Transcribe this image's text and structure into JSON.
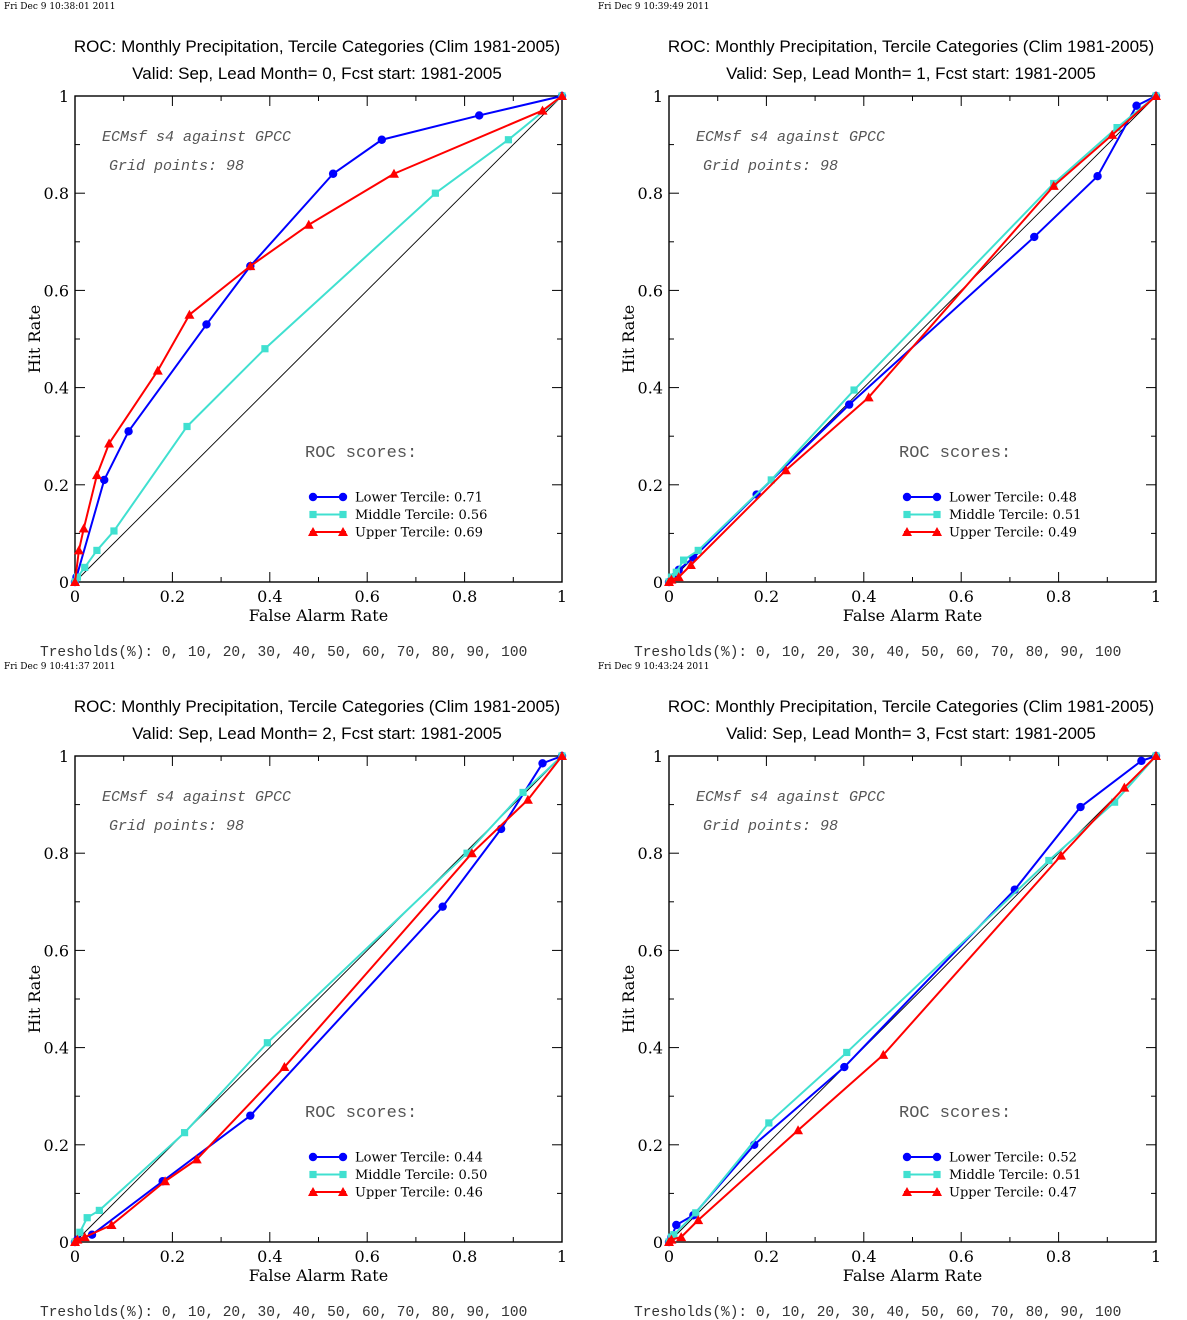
{
  "chart_data": [
    {
      "type": "line",
      "timestamp": "Fri Dec  9 10:38:01 2011",
      "title": "ROC: Monthly Precipitation, Tercile Categories (Clim 1981-2005)",
      "subtitle": "Valid: Sep, Lead Month= 0, Fcst start: 1981-2005",
      "xlabel": "False Alarm Rate",
      "ylabel": "Hit Rate",
      "xlim": [
        0,
        1
      ],
      "ylim": [
        0,
        1
      ],
      "xticks": [
        "0",
        "0.2",
        "0.4",
        "0.6",
        "0.8",
        "1"
      ],
      "yticks": [
        "0",
        "0.2",
        "0.4",
        "0.6",
        "0.8",
        "1"
      ],
      "annotation_lines": [
        "ECMsf s4 against GPCC",
        "Grid points:   98"
      ],
      "scores_heading": "ROC scores:",
      "legend_position": "bottom-right",
      "thresholds_text": "Tresholds(%): 0, 10, 20, 30, 40, 50, 60, 70, 80, 90, 100",
      "series": [
        {
          "name": "Lower Tercile: 0.71",
          "color": "#0000ff",
          "marker": "circle",
          "x": [
            0,
            0.003,
            0.06,
            0.11,
            0.27,
            0.36,
            0.53,
            0.63,
            0.83,
            1.0
          ],
          "y": [
            0,
            0.01,
            0.21,
            0.31,
            0.53,
            0.65,
            0.84,
            0.91,
            0.96,
            1.0
          ]
        },
        {
          "name": "Middle Tercile: 0.56",
          "color": "#40e0d0",
          "marker": "square",
          "x": [
            0,
            0.005,
            0.02,
            0.045,
            0.08,
            0.23,
            0.39,
            0.74,
            0.89,
            1.0
          ],
          "y": [
            0,
            0.01,
            0.03,
            0.065,
            0.105,
            0.32,
            0.48,
            0.8,
            0.91,
            1.0
          ]
        },
        {
          "name": "Upper Tercile: 0.69",
          "color": "#ff0000",
          "marker": "triangle",
          "x": [
            0,
            0.008,
            0.018,
            0.045,
            0.07,
            0.17,
            0.235,
            0.36,
            0.48,
            0.655,
            0.96,
            1.0
          ],
          "y": [
            0,
            0.065,
            0.11,
            0.22,
            0.285,
            0.435,
            0.55,
            0.65,
            0.735,
            0.84,
            0.97,
            1.0
          ]
        }
      ]
    },
    {
      "type": "line",
      "timestamp": "Fri Dec  9 10:39:49 2011",
      "title": "ROC: Monthly Precipitation, Tercile Categories (Clim 1981-2005)",
      "subtitle": "Valid: Sep, Lead Month= 1, Fcst start: 1981-2005",
      "xlabel": "False Alarm Rate",
      "ylabel": "Hit Rate",
      "xlim": [
        0,
        1
      ],
      "ylim": [
        0,
        1
      ],
      "xticks": [
        "0",
        "0.2",
        "0.4",
        "0.6",
        "0.8",
        "1"
      ],
      "yticks": [
        "0",
        "0.2",
        "0.4",
        "0.6",
        "0.8",
        "1"
      ],
      "annotation_lines": [
        "ECMsf s4 against GPCC",
        "Grid points:   98"
      ],
      "scores_heading": "ROC scores:",
      "legend_position": "bottom-right",
      "thresholds_text": "Tresholds(%): 0, 10, 20, 30, 40, 50, 60, 70, 80, 90, 100",
      "series": [
        {
          "name": "Lower Tercile: 0.48",
          "color": "#0000ff",
          "marker": "circle",
          "x": [
            0,
            0.01,
            0.02,
            0.05,
            0.18,
            0.37,
            0.75,
            0.88,
            0.96,
            1.0
          ],
          "y": [
            0,
            0.01,
            0.025,
            0.05,
            0.18,
            0.365,
            0.71,
            0.835,
            0.98,
            1.0
          ]
        },
        {
          "name": "Middle Tercile: 0.51",
          "color": "#40e0d0",
          "marker": "square",
          "x": [
            0,
            0.005,
            0.015,
            0.03,
            0.06,
            0.21,
            0.38,
            0.79,
            0.92,
            1.0
          ],
          "y": [
            0,
            0.01,
            0.02,
            0.045,
            0.065,
            0.21,
            0.395,
            0.82,
            0.935,
            1.0
          ]
        },
        {
          "name": "Upper Tercile: 0.49",
          "color": "#ff0000",
          "marker": "triangle",
          "x": [
            0,
            0.005,
            0.02,
            0.045,
            0.24,
            0.41,
            0.79,
            0.91,
            1.0
          ],
          "y": [
            0,
            0.005,
            0.01,
            0.035,
            0.23,
            0.38,
            0.815,
            0.92,
            1.0
          ]
        }
      ]
    },
    {
      "type": "line",
      "timestamp": "Fri Dec  9 10:41:37 2011",
      "title": "ROC: Monthly Precipitation, Tercile Categories (Clim 1981-2005)",
      "subtitle": "Valid: Sep, Lead Month= 2, Fcst start: 1981-2005",
      "xlabel": "False Alarm Rate",
      "ylabel": "Hit Rate",
      "xlim": [
        0,
        1
      ],
      "ylim": [
        0,
        1
      ],
      "xticks": [
        "0",
        "0.2",
        "0.4",
        "0.6",
        "0.8",
        "1"
      ],
      "yticks": [
        "0",
        "0.2",
        "0.4",
        "0.6",
        "0.8",
        "1"
      ],
      "annotation_lines": [
        "ECMsf s4 against GPCC",
        "Grid points:   98"
      ],
      "scores_heading": "ROC scores:",
      "legend_position": "bottom-right",
      "thresholds_text": "Tresholds(%): 0, 10, 20, 30, 40, 50, 60, 70, 80, 90, 100",
      "series": [
        {
          "name": "Lower Tercile: 0.44",
          "color": "#0000ff",
          "marker": "circle",
          "x": [
            0,
            0.005,
            0.035,
            0.18,
            0.36,
            0.755,
            0.875,
            0.96,
            1.0
          ],
          "y": [
            0,
            0.005,
            0.015,
            0.125,
            0.26,
            0.69,
            0.85,
            0.985,
            1.0
          ]
        },
        {
          "name": "Middle Tercile: 0.50",
          "color": "#40e0d0",
          "marker": "square",
          "x": [
            0,
            0.01,
            0.025,
            0.05,
            0.225,
            0.395,
            0.805,
            0.92,
            1.0
          ],
          "y": [
            0,
            0.02,
            0.05,
            0.065,
            0.225,
            0.41,
            0.8,
            0.925,
            1.0
          ]
        },
        {
          "name": "Upper Tercile: 0.46",
          "color": "#ff0000",
          "marker": "triangle",
          "x": [
            0,
            0.005,
            0.02,
            0.075,
            0.185,
            0.25,
            0.43,
            0.815,
            0.93,
            1.0
          ],
          "y": [
            0,
            0.005,
            0.01,
            0.035,
            0.125,
            0.17,
            0.36,
            0.8,
            0.91,
            1.0
          ]
        }
      ]
    },
    {
      "type": "line",
      "timestamp": "Fri Dec  9 10:43:24 2011",
      "title": "ROC: Monthly Precipitation, Tercile Categories (Clim 1981-2005)",
      "subtitle": "Valid: Sep, Lead Month= 3, Fcst start: 1981-2005",
      "xlabel": "False Alarm Rate",
      "ylabel": "Hit Rate",
      "xlim": [
        0,
        1
      ],
      "ylim": [
        0,
        1
      ],
      "xticks": [
        "0",
        "0.2",
        "0.4",
        "0.6",
        "0.8",
        "1"
      ],
      "yticks": [
        "0",
        "0.2",
        "0.4",
        "0.6",
        "0.8",
        "1"
      ],
      "annotation_lines": [
        "ECMsf s4 against GPCC",
        "Grid points:   98"
      ],
      "scores_heading": "ROC scores:",
      "legend_position": "bottom-right",
      "thresholds_text": "Tresholds(%): 0, 10, 20, 30, 40, 50, 60, 70, 80, 90, 100",
      "series": [
        {
          "name": "Lower Tercile: 0.52",
          "color": "#0000ff",
          "marker": "circle",
          "x": [
            0,
            0.005,
            0.015,
            0.05,
            0.175,
            0.36,
            0.71,
            0.845,
            0.97,
            1.0
          ],
          "y": [
            0,
            0.01,
            0.035,
            0.055,
            0.2,
            0.36,
            0.725,
            0.895,
            0.99,
            1.0
          ]
        },
        {
          "name": "Middle Tercile: 0.51",
          "color": "#40e0d0",
          "marker": "square",
          "x": [
            0,
            0.005,
            0.01,
            0.055,
            0.205,
            0.365,
            0.78,
            0.915,
            1.0
          ],
          "y": [
            0,
            0.01,
            0.015,
            0.06,
            0.245,
            0.39,
            0.785,
            0.905,
            1.0
          ]
        },
        {
          "name": "Upper Tercile: 0.47",
          "color": "#ff0000",
          "marker": "triangle",
          "x": [
            0,
            0.005,
            0.025,
            0.06,
            0.265,
            0.44,
            0.805,
            0.935,
            1.0
          ],
          "y": [
            0,
            0.005,
            0.01,
            0.045,
            0.23,
            0.385,
            0.795,
            0.935,
            1.0
          ]
        }
      ]
    }
  ]
}
